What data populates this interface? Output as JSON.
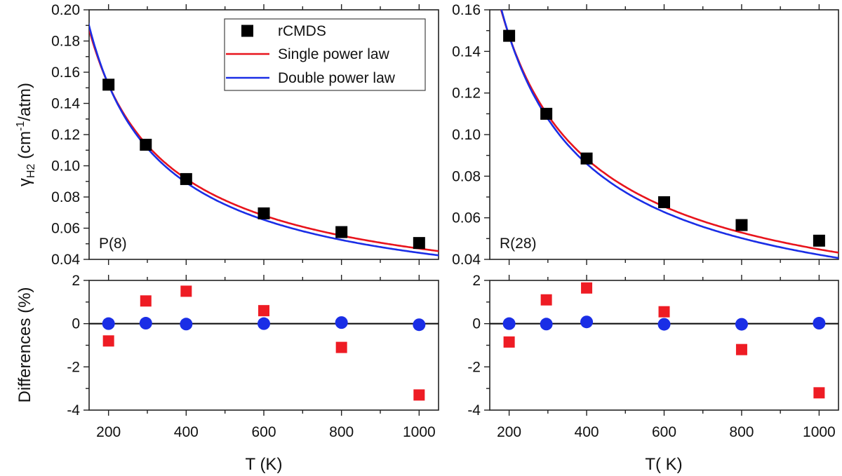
{
  "chart_data": [
    {
      "panel": "top-left",
      "type": "scatter",
      "annotation": "P(8)",
      "ylabel": "γH2 (cm-1/atm)",
      "ylabel_parts": {
        "gamma": "γ",
        "gamma_sub": "H2",
        "open": " (cm",
        "sup": "-1",
        "close": "/atm)"
      },
      "xlim": [
        150,
        1050
      ],
      "ylim": [
        0.04,
        0.2
      ],
      "xticks": [
        "200",
        "400",
        "600",
        "800",
        "1000"
      ],
      "yticks": [
        "0.04",
        "0.06",
        "0.08",
        "0.10",
        "0.12",
        "0.14",
        "0.16",
        "0.18",
        "0.20"
      ],
      "legend": {
        "placement": "top-right",
        "entries": [
          {
            "name": "rCMDS",
            "kind": "marker",
            "color": "#000000"
          },
          {
            "name": "Single power law",
            "kind": "line",
            "color": "#e8141c"
          },
          {
            "name": "Double power law",
            "kind": "line",
            "color": "#1a2ee6"
          }
        ]
      },
      "series": [
        {
          "name": "rCMDS",
          "x": [
            200,
            296,
            400,
            600,
            800,
            1000
          ],
          "y": [
            0.152,
            0.1135,
            0.0915,
            0.0695,
            0.0575,
            0.0505
          ]
        },
        {
          "name": "Single power law",
          "model": {
            "a": 0.152,
            "t0": 200,
            "n": 0.73
          }
        },
        {
          "name": "Double power law",
          "model": {
            "a": 0.152,
            "t0": 200,
            "n": 0.755,
            "b": 0.009
          }
        }
      ]
    },
    {
      "panel": "top-right",
      "type": "scatter",
      "annotation": "R(28)",
      "xlim": [
        150,
        1050
      ],
      "ylim": [
        0.04,
        0.16
      ],
      "xticks": [
        "200",
        "400",
        "600",
        "800",
        "1000"
      ],
      "yticks": [
        "0.04",
        "0.06",
        "0.08",
        "0.10",
        "0.12",
        "0.14",
        "0.16"
      ],
      "series": [
        {
          "name": "rCMDS",
          "x": [
            200,
            296,
            400,
            600,
            800,
            1000
          ],
          "y": [
            0.1475,
            0.11,
            0.0885,
            0.0675,
            0.0565,
            0.049
          ]
        },
        {
          "name": "Single power law",
          "model": {
            "a": 0.1475,
            "t0": 200,
            "n": 0.74
          }
        },
        {
          "name": "Double power law",
          "model": {
            "a": 0.1475,
            "t0": 200,
            "n": 0.765,
            "b": 0.009
          }
        }
      ]
    },
    {
      "panel": "bottom-left",
      "type": "scatter",
      "ylabel": "Differences (%)",
      "xlabel": "T (K)",
      "xlim": [
        150,
        1050
      ],
      "ylim": [
        -4,
        2
      ],
      "xticks": [
        "200",
        "400",
        "600",
        "800",
        "1000"
      ],
      "yticks": [
        "-4",
        "-2",
        "0",
        "2"
      ],
      "series": [
        {
          "name": "Single power law",
          "marker": "square",
          "color": "#ee1c24",
          "x": [
            200,
            296,
            400,
            600,
            800,
            1000
          ],
          "y": [
            -0.8,
            1.05,
            1.5,
            0.6,
            -1.1,
            -3.3
          ]
        },
        {
          "name": "Double power law",
          "marker": "circle",
          "color": "#1a2ee6",
          "x": [
            200,
            296,
            400,
            600,
            800,
            1000
          ],
          "y": [
            0.0,
            0.02,
            -0.02,
            0.0,
            0.05,
            -0.05
          ]
        }
      ]
    },
    {
      "panel": "bottom-right",
      "type": "scatter",
      "xlabel": "T( K)",
      "xlim": [
        150,
        1050
      ],
      "ylim": [
        -4,
        2
      ],
      "xticks": [
        "200",
        "400",
        "600",
        "800",
        "1000"
      ],
      "yticks": [
        "-4",
        "-2",
        "0",
        "2"
      ],
      "series": [
        {
          "name": "Single power law",
          "marker": "square",
          "color": "#ee1c24",
          "x": [
            200,
            296,
            400,
            600,
            800,
            1000
          ],
          "y": [
            -0.85,
            1.1,
            1.65,
            0.55,
            -1.2,
            -3.2
          ]
        },
        {
          "name": "Double power law",
          "marker": "circle",
          "color": "#1a2ee6",
          "x": [
            200,
            296,
            400,
            600,
            800,
            1000
          ],
          "y": [
            0.0,
            -0.02,
            0.08,
            -0.03,
            -0.03,
            0.02
          ]
        }
      ]
    }
  ]
}
